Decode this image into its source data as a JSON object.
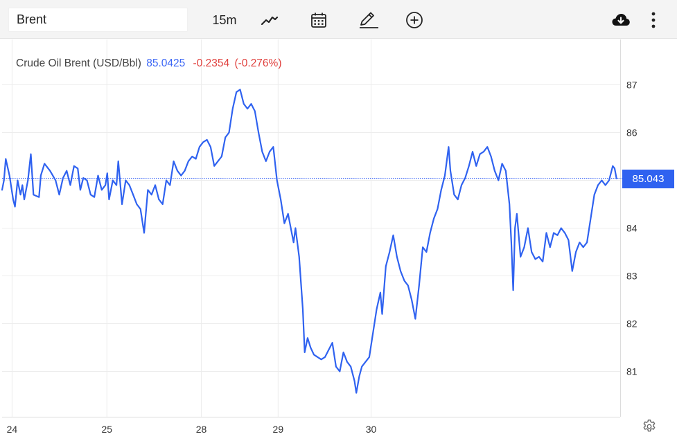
{
  "toolbar": {
    "symbol_value": "Brent",
    "interval_label": "15m",
    "icons": [
      "line-chart-icon",
      "calendar-icon",
      "pencil-icon",
      "add-circle-icon",
      "cloud-download-icon",
      "more-vertical-icon",
      "settings-icon"
    ]
  },
  "legend": {
    "name": "Crude Oil Brent (USD/Bbl)",
    "price": "85.0425",
    "change": "-0.2354",
    "change_pct": "(-0.276%)"
  },
  "price_tag": "85.043",
  "colors": {
    "line": "#2f62f0",
    "positive": "#3b66f5",
    "negative": "#e0413e",
    "grid": "#ececec"
  },
  "chart_data": {
    "type": "line",
    "series": [
      {
        "values": [
          [
            0,
            84.8
          ],
          [
            0.05,
            85.0
          ],
          [
            0.1,
            85.45
          ],
          [
            0.2,
            85.1
          ],
          [
            0.3,
            84.6
          ],
          [
            0.35,
            84.45
          ],
          [
            0.42,
            85.0
          ],
          [
            0.5,
            84.7
          ],
          [
            0.55,
            84.9
          ],
          [
            0.6,
            84.6
          ],
          [
            0.7,
            85.0
          ],
          [
            0.78,
            85.55
          ],
          [
            0.85,
            84.7
          ],
          [
            1.0,
            84.65
          ],
          [
            1.05,
            85.1
          ],
          [
            1.15,
            85.35
          ],
          [
            1.3,
            85.2
          ],
          [
            1.45,
            85.0
          ],
          [
            1.55,
            84.7
          ],
          [
            1.65,
            85.05
          ],
          [
            1.75,
            85.2
          ],
          [
            1.85,
            84.9
          ],
          [
            1.95,
            85.3
          ],
          [
            2.05,
            85.25
          ],
          [
            2.12,
            84.8
          ],
          [
            2.2,
            85.05
          ],
          [
            2.3,
            85.0
          ],
          [
            2.4,
            84.7
          ],
          [
            2.5,
            84.65
          ],
          [
            2.6,
            85.1
          ],
          [
            2.7,
            84.8
          ],
          [
            2.8,
            84.9
          ],
          [
            2.85,
            85.15
          ],
          [
            2.9,
            84.6
          ],
          [
            3.0,
            85.0
          ],
          [
            3.1,
            84.9
          ],
          [
            3.15,
            85.4
          ],
          [
            3.25,
            84.5
          ],
          [
            3.35,
            85.0
          ],
          [
            3.45,
            84.9
          ],
          [
            3.55,
            84.7
          ],
          [
            3.65,
            84.5
          ],
          [
            3.75,
            84.4
          ],
          [
            3.85,
            83.9
          ],
          [
            3.95,
            84.8
          ],
          [
            4.05,
            84.7
          ],
          [
            4.15,
            84.9
          ],
          [
            4.25,
            84.6
          ],
          [
            4.35,
            84.5
          ],
          [
            4.45,
            85.0
          ],
          [
            4.55,
            84.9
          ],
          [
            4.65,
            85.4
          ],
          [
            4.75,
            85.2
          ],
          [
            4.85,
            85.1
          ],
          [
            4.95,
            85.2
          ],
          [
            5.05,
            85.4
          ],
          [
            5.15,
            85.5
          ],
          [
            5.25,
            85.45
          ],
          [
            5.35,
            85.7
          ],
          [
            5.45,
            85.8
          ],
          [
            5.55,
            85.85
          ],
          [
            5.65,
            85.7
          ],
          [
            5.75,
            85.3
          ],
          [
            5.85,
            85.4
          ],
          [
            5.95,
            85.5
          ],
          [
            6.05,
            85.9
          ],
          [
            6.15,
            86.0
          ],
          [
            6.25,
            86.5
          ],
          [
            6.35,
            86.85
          ],
          [
            6.45,
            86.9
          ],
          [
            6.55,
            86.6
          ],
          [
            6.65,
            86.5
          ],
          [
            6.75,
            86.6
          ],
          [
            6.85,
            86.45
          ],
          [
            6.95,
            86.0
          ],
          [
            7.05,
            85.6
          ],
          [
            7.15,
            85.4
          ],
          [
            7.25,
            85.6
          ],
          [
            7.35,
            85.7
          ],
          [
            7.45,
            85.0
          ],
          [
            7.55,
            84.6
          ],
          [
            7.65,
            84.1
          ],
          [
            7.75,
            84.3
          ],
          [
            7.85,
            83.9
          ],
          [
            7.9,
            83.7
          ],
          [
            7.95,
            84.0
          ],
          [
            8.05,
            83.4
          ],
          [
            8.15,
            82.3
          ],
          [
            8.2,
            81.4
          ],
          [
            8.28,
            81.7
          ],
          [
            8.36,
            81.5
          ],
          [
            8.45,
            81.35
          ],
          [
            8.55,
            81.3
          ],
          [
            8.65,
            81.25
          ],
          [
            8.75,
            81.3
          ],
          [
            8.85,
            81.45
          ],
          [
            8.95,
            81.6
          ],
          [
            9.05,
            81.1
          ],
          [
            9.15,
            81.0
          ],
          [
            9.25,
            81.4
          ],
          [
            9.35,
            81.2
          ],
          [
            9.45,
            81.1
          ],
          [
            9.55,
            80.8
          ],
          [
            9.6,
            80.55
          ],
          [
            9.68,
            80.9
          ],
          [
            9.75,
            81.1
          ],
          [
            9.85,
            81.2
          ],
          [
            9.95,
            81.3
          ],
          [
            10.05,
            81.8
          ],
          [
            10.15,
            82.3
          ],
          [
            10.25,
            82.65
          ],
          [
            10.3,
            82.2
          ],
          [
            10.4,
            83.2
          ],
          [
            10.5,
            83.5
          ],
          [
            10.6,
            83.85
          ],
          [
            10.7,
            83.4
          ],
          [
            10.8,
            83.1
          ],
          [
            10.9,
            82.9
          ],
          [
            11.0,
            82.8
          ],
          [
            11.1,
            82.5
          ],
          [
            11.2,
            82.1
          ],
          [
            11.3,
            82.8
          ],
          [
            11.4,
            83.6
          ],
          [
            11.5,
            83.5
          ],
          [
            11.6,
            83.9
          ],
          [
            11.7,
            84.2
          ],
          [
            11.8,
            84.4
          ],
          [
            11.9,
            84.8
          ],
          [
            12.0,
            85.1
          ],
          [
            12.1,
            85.7
          ],
          [
            12.15,
            85.2
          ],
          [
            12.25,
            84.7
          ],
          [
            12.35,
            84.6
          ],
          [
            12.45,
            84.9
          ],
          [
            12.55,
            85.05
          ],
          [
            12.65,
            85.3
          ],
          [
            12.75,
            85.6
          ],
          [
            12.85,
            85.3
          ],
          [
            12.95,
            85.55
          ],
          [
            13.05,
            85.6
          ],
          [
            13.15,
            85.7
          ],
          [
            13.25,
            85.5
          ],
          [
            13.35,
            85.2
          ],
          [
            13.45,
            85.0
          ],
          [
            13.55,
            85.35
          ],
          [
            13.65,
            85.2
          ],
          [
            13.75,
            84.5
          ],
          [
            13.8,
            83.7
          ],
          [
            13.85,
            82.7
          ],
          [
            13.9,
            84.0
          ],
          [
            13.95,
            84.3
          ],
          [
            14.05,
            83.4
          ],
          [
            14.15,
            83.6
          ],
          [
            14.25,
            84.0
          ],
          [
            14.35,
            83.5
          ],
          [
            14.45,
            83.35
          ],
          [
            14.55,
            83.4
          ],
          [
            14.65,
            83.3
          ],
          [
            14.75,
            83.9
          ],
          [
            14.85,
            83.6
          ],
          [
            14.95,
            83.9
          ],
          [
            15.05,
            83.85
          ],
          [
            15.15,
            84.0
          ],
          [
            15.25,
            83.9
          ],
          [
            15.35,
            83.75
          ],
          [
            15.45,
            83.1
          ],
          [
            15.55,
            83.5
          ],
          [
            15.65,
            83.7
          ],
          [
            15.75,
            83.6
          ],
          [
            15.85,
            83.7
          ],
          [
            15.95,
            84.2
          ],
          [
            16.05,
            84.7
          ],
          [
            16.15,
            84.9
          ],
          [
            16.25,
            85.0
          ],
          [
            16.35,
            84.9
          ],
          [
            16.45,
            85.0
          ],
          [
            16.55,
            85.3
          ],
          [
            16.6,
            85.25
          ],
          [
            16.65,
            85.04
          ]
        ]
      }
    ],
    "x_ticks": [
      {
        "x": 0.27,
        "label": "24"
      },
      {
        "x": 2.84,
        "label": "25"
      },
      {
        "x": 5.4,
        "label": "28"
      },
      {
        "x": 7.48,
        "label": "29"
      },
      {
        "x": 10.0,
        "label": "30"
      }
    ],
    "y_ticks": [
      81,
      82,
      83,
      84,
      85,
      86,
      87
    ],
    "y_tick_labels": [
      "81",
      "82",
      "83",
      "84",
      "",
      "86",
      "87"
    ],
    "ylim": [
      80.05,
      87.95
    ],
    "xlim": [
      0,
      16.75
    ],
    "current_value": 85.043,
    "grid": true
  }
}
